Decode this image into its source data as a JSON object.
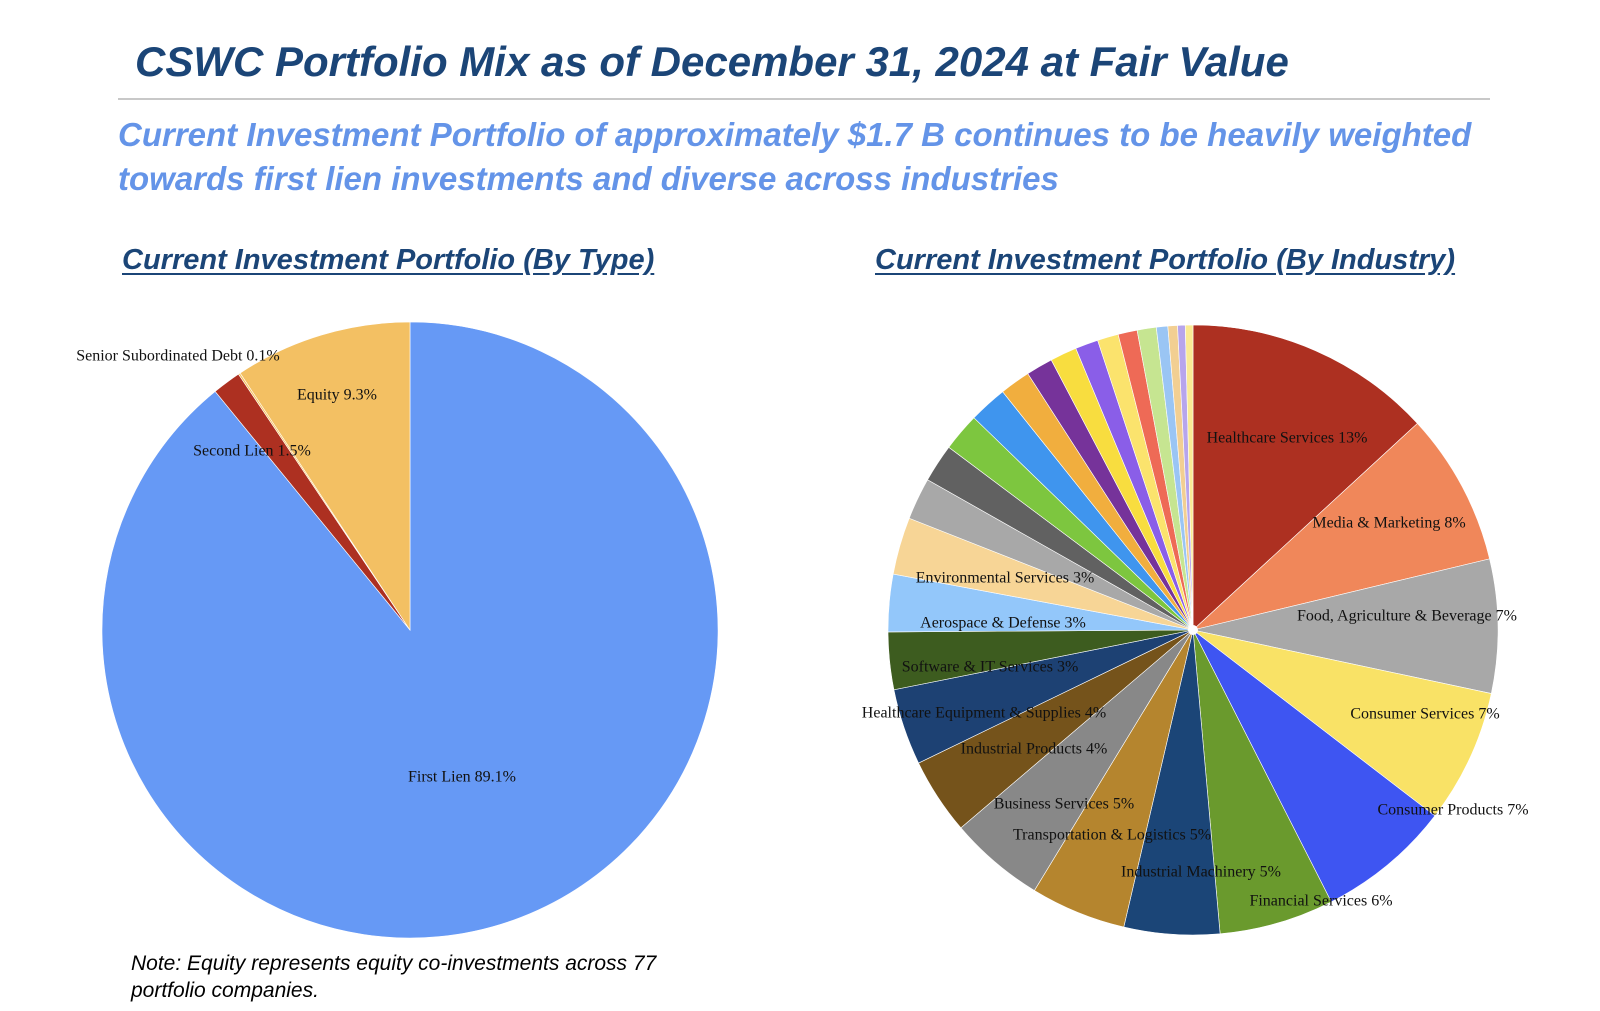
{
  "title": "CSWC Portfolio Mix as of December 31, 2024 at Fair Value",
  "subtitle": "Current Investment Portfolio of approximately $1.7 B continues to be heavily weighted towards first lien investments and diverse across industries",
  "note": "Note: Equity represents equity co-investments across 77 portfolio companies.",
  "chart_data": [
    {
      "type": "pie",
      "title": "Current Investment Portfolio (By Type)",
      "slices": [
        {
          "label": "First Lien 89.1%",
          "value": 89.1,
          "color": "#6699f5"
        },
        {
          "label": "Second Lien 1.5%",
          "value": 1.5,
          "color": "#ad3021"
        },
        {
          "label": "Senior Subordinated Debt 0.1%",
          "value": 0.1,
          "color": "#f6c360"
        },
        {
          "label": "Equity 9.3%",
          "value": 9.3,
          "color": "#f3c063"
        }
      ]
    },
    {
      "type": "pie",
      "title": "Current Investment Portfolio (By Industry)",
      "slices": [
        {
          "label": "Healthcare Services 13%",
          "value": 13,
          "color": "#ad3021"
        },
        {
          "label": "Media & Marketing 8%",
          "value": 8,
          "color": "#f0875a"
        },
        {
          "label": "Food, Agriculture & Beverage 7%",
          "value": 7,
          "color": "#a8a8a8"
        },
        {
          "label": "Consumer Services 7%",
          "value": 7,
          "color": "#f9e266"
        },
        {
          "label": "Consumer Products 7%",
          "value": 7,
          "color": "#3e55f2"
        },
        {
          "label": "Financial Services 6%",
          "value": 6,
          "color": "#6a9a2d"
        },
        {
          "label": "Industrial Machinery 5%",
          "value": 5,
          "color": "#1b4577"
        },
        {
          "label": "Transportation & Logistics 5%",
          "value": 5,
          "color": "#b5852e"
        },
        {
          "label": "Business Services 5%",
          "value": 5,
          "color": "#888888"
        },
        {
          "label": "Industrial Products 4%",
          "value": 4,
          "color": "#75531b"
        },
        {
          "label": "Healthcare Equipment & Supplies 4%",
          "value": 4,
          "color": "#1d4173"
        },
        {
          "label": "Software & IT Services 3%",
          "value": 3,
          "color": "#3d5c1f"
        },
        {
          "label": "Aerospace & Defense 3%",
          "value": 3,
          "color": "#93c7fa"
        },
        {
          "label": "Environmental Services 3%",
          "value": 3,
          "color": "#f7d596"
        },
        {
          "label": "",
          "value": 2.2,
          "color": "#a8a8a8"
        },
        {
          "label": "",
          "value": 2.0,
          "color": "#616161"
        },
        {
          "label": "",
          "value": 2.0,
          "color": "#7dc63f"
        },
        {
          "label": "",
          "value": 2.0,
          "color": "#3f95ee"
        },
        {
          "label": "",
          "value": 1.6,
          "color": "#f1ae3e"
        },
        {
          "label": "",
          "value": 1.4,
          "color": "#76339a"
        },
        {
          "label": "",
          "value": 1.4,
          "color": "#f8dd3f"
        },
        {
          "label": "",
          "value": 1.2,
          "color": "#8a5ee8"
        },
        {
          "label": "",
          "value": 1.1,
          "color": "#fbe36d"
        },
        {
          "label": "",
          "value": 1.0,
          "color": "#ee6a56"
        },
        {
          "label": "",
          "value": 1.0,
          "color": "#c6e591"
        },
        {
          "label": "",
          "value": 0.6,
          "color": "#9ac5f4"
        },
        {
          "label": "",
          "value": 0.5,
          "color": "#f2cf92"
        },
        {
          "label": "",
          "value": 0.4,
          "color": "#b7a5ec"
        },
        {
          "label": "",
          "value": 0.4,
          "color": "#faea94"
        }
      ]
    }
  ]
}
